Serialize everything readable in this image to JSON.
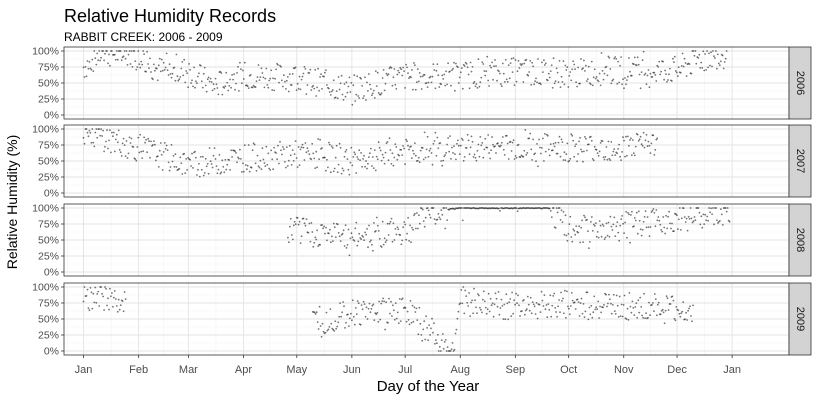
{
  "chart_data": {
    "type": "scatter",
    "title": "Relative Humidity Records",
    "subtitle": "RABBIT CREEK: 2006 - 2009",
    "xlabel": "Day of the Year",
    "ylabel": "Relative Humidity (%)",
    "x_ticks": [
      "Jan",
      "Feb",
      "Mar",
      "Apr",
      "May",
      "Jun",
      "Jul",
      "Aug",
      "Sep",
      "Oct",
      "Nov",
      "Dec",
      "Jan"
    ],
    "y_ticks": [
      "0%",
      "25%",
      "50%",
      "75%",
      "100%"
    ],
    "ylim": [
      0,
      100
    ],
    "xlim": [
      "Dec 21",
      "Jan 31 (next year)"
    ],
    "grid": true,
    "point_color": "#000000",
    "strip_color": "#d3d3d3",
    "facets": [
      {
        "label": "2006",
        "series": [
          {
            "start": "Jan 01",
            "end": "Dec 29",
            "segments": [
              {
                "x": "Jan 01",
                "y": 75
              },
              {
                "x": "Jan 10",
                "y": 97
              },
              {
                "x": "Feb 01",
                "y": 96
              },
              {
                "x": "Feb 10",
                "y": 72
              },
              {
                "x": "Feb 20",
                "y": 66
              },
              {
                "x": "Mar 01",
                "y": 70
              },
              {
                "x": "Mar 15",
                "y": 45
              },
              {
                "x": "Apr 01",
                "y": 62
              },
              {
                "x": "May 01",
                "y": 58
              },
              {
                "x": "Jun 01",
                "y": 40
              },
              {
                "x": "Jul 01",
                "y": 60
              },
              {
                "x": "Aug 01",
                "y": 62
              },
              {
                "x": "Sep 01",
                "y": 68
              },
              {
                "x": "Oct 01",
                "y": 65
              },
              {
                "x": "Nov 01",
                "y": 70
              },
              {
                "x": "Dec 01",
                "y": 70
              },
              {
                "x": "Dec 15",
                "y": 90
              },
              {
                "x": "Dec 29",
                "y": 95
              }
            ]
          }
        ]
      },
      {
        "label": "2007",
        "series": [
          {
            "start": "Jan 01",
            "end": "Nov 20",
            "segments": [
              {
                "x": "Jan 01",
                "y": 97
              },
              {
                "x": "Feb 01",
                "y": 70
              },
              {
                "x": "Mar 01",
                "y": 45
              },
              {
                "x": "Apr 01",
                "y": 55
              },
              {
                "x": "May 01",
                "y": 60
              },
              {
                "x": "Jun 01",
                "y": 50
              },
              {
                "x": "Jul 01",
                "y": 65
              },
              {
                "x": "Aug 01",
                "y": 70
              },
              {
                "x": "Sep 01",
                "y": 72
              },
              {
                "x": "Oct 01",
                "y": 70
              },
              {
                "x": "Nov 01",
                "y": 72
              },
              {
                "x": "Nov 20",
                "y": 75
              }
            ]
          }
        ]
      },
      {
        "label": "2008",
        "series": [
          {
            "start": "Apr 26",
            "end": "Dec 31",
            "segments": [
              {
                "x": "Apr 26",
                "y": 65
              },
              {
                "x": "Jun 01",
                "y": 55
              },
              {
                "x": "Jul 01",
                "y": 65
              },
              {
                "x": "Jul 15",
                "y": 95
              },
              {
                "x": "Aug 01",
                "y": 100
              },
              {
                "x": "Sep 20",
                "y": 100
              },
              {
                "x": "Oct 01",
                "y": 65
              },
              {
                "x": "Nov 01",
                "y": 70
              },
              {
                "x": "Dec 01",
                "y": 85
              },
              {
                "x": "Dec 31",
                "y": 90
              }
            ]
          }
        ]
      },
      {
        "label": "2009",
        "series": [
          {
            "start": "Jan 01",
            "end": "Jan 25",
            "segments": [
              {
                "x": "Jan 01",
                "y": 90
              },
              {
                "x": "Jan 25",
                "y": 75
              }
            ]
          },
          {
            "start": "May 10",
            "end": "Dec 10",
            "segments": [
              {
                "x": "May 10",
                "y": 45
              },
              {
                "x": "Jun 01",
                "y": 60
              },
              {
                "x": "Jul 01",
                "y": 65
              },
              {
                "x": "Jul 28",
                "y": 0
              },
              {
                "x": "Aug 01",
                "y": 80
              },
              {
                "x": "Aug 20",
                "y": 70
              },
              {
                "x": "Sep 01",
                "y": 72
              },
              {
                "x": "Oct 01",
                "y": 72
              },
              {
                "x": "Nov 01",
                "y": 70
              },
              {
                "x": "Dec 01",
                "y": 65
              },
              {
                "x": "Dec 10",
                "y": 60
              }
            ]
          }
        ]
      }
    ]
  }
}
